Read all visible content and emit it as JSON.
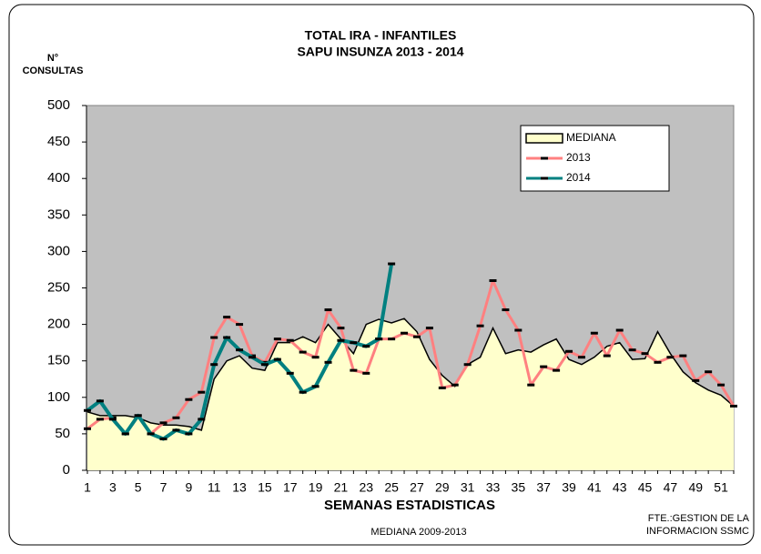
{
  "chart_data": {
    "type": "line",
    "title": "TOTAL IRA - INFANTILES",
    "subtitle": "SAPU INSUNZA   2013 - 2014",
    "y_label": [
      "N°",
      "CONSULTAS"
    ],
    "x_label": "SEMANAS ESTADISTICAS",
    "footnote": "MEDIANA 2009-2013",
    "source": [
      "FTE.:GESTION DE LA",
      "INFORMACION SSMC"
    ],
    "categories": [
      1,
      null,
      3,
      null,
      5,
      null,
      7,
      null,
      9,
      null,
      11,
      null,
      13,
      null,
      15,
      null,
      17,
      null,
      19,
      null,
      21,
      null,
      23,
      null,
      25,
      null,
      27,
      null,
      29,
      null,
      31,
      null,
      33,
      null,
      35,
      null,
      37,
      null,
      39,
      null,
      41,
      null,
      43,
      null,
      45,
      null,
      47,
      null,
      49,
      null,
      51,
      null
    ],
    "ylim": [
      0,
      500
    ],
    "yticks": [
      0,
      50,
      100,
      150,
      200,
      250,
      300,
      350,
      400,
      450,
      500
    ],
    "background": "#c0c0c0",
    "legend": "top-right",
    "series": [
      {
        "name": "MEDIANA",
        "style": "area",
        "color": "#000000",
        "fill": "#ffffcc",
        "values": [
          80,
          75,
          75,
          75,
          72,
          65,
          62,
          62,
          60,
          55,
          125,
          150,
          157,
          140,
          137,
          175,
          175,
          183,
          175,
          200,
          180,
          160,
          200,
          207,
          202,
          208,
          190,
          152,
          130,
          115,
          145,
          155,
          195,
          160,
          165,
          162,
          172,
          180,
          152,
          145,
          155,
          170,
          175,
          152,
          153,
          190,
          160,
          135,
          120,
          110,
          103,
          88
        ]
      },
      {
        "name": "2013",
        "style": "line",
        "color": "#ff8080",
        "values": [
          57,
          70,
          72,
          50,
          75,
          50,
          65,
          72,
          97,
          107,
          182,
          210,
          200,
          157,
          148,
          180,
          178,
          162,
          155,
          220,
          195,
          137,
          133,
          180,
          180,
          188,
          183,
          195,
          113,
          117,
          145,
          198,
          260,
          220,
          192,
          117,
          142,
          137,
          163,
          155,
          188,
          157,
          192,
          165,
          160,
          148,
          155,
          157,
          123,
          135,
          117,
          88
        ]
      },
      {
        "name": "2014",
        "style": "line",
        "color": "#008080",
        "values": [
          82,
          95,
          70,
          50,
          75,
          50,
          43,
          55,
          50,
          70,
          145,
          182,
          165,
          155,
          145,
          152,
          133,
          107,
          115,
          148,
          178,
          175,
          170,
          180,
          283,
          null,
          null,
          null,
          null,
          null,
          null,
          null,
          null,
          null,
          null,
          null,
          null,
          null,
          null,
          null,
          null,
          null,
          null,
          null,
          null,
          null,
          null,
          null,
          null,
          null,
          null,
          null
        ]
      }
    ]
  }
}
